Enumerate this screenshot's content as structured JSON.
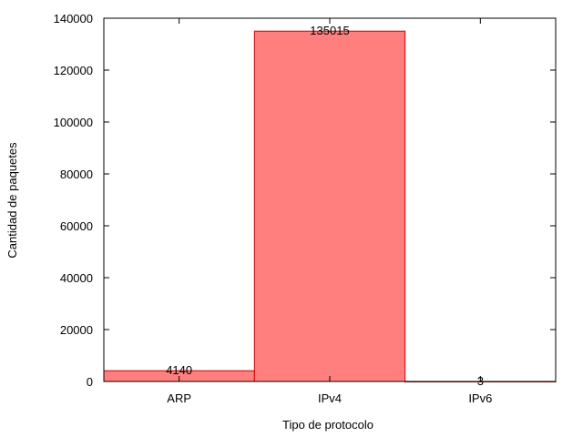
{
  "chart_data": {
    "type": "bar",
    "title": "",
    "categories": [
      "ARP",
      "IPv4",
      "IPv6"
    ],
    "values": [
      4140,
      135015,
      3
    ],
    "data_labels": [
      "4140",
      "135015",
      "3"
    ],
    "xlabel": "Tipo de protocolo",
    "ylabel": "Cantidad de paquetes",
    "ylim": [
      0,
      140000
    ],
    "yticks": [
      0,
      20000,
      40000,
      60000,
      80000,
      100000,
      120000,
      140000
    ],
    "ytick_labels": [
      "0",
      "20000",
      "40000",
      "60000",
      "80000",
      "100000",
      "120000",
      "140000"
    ],
    "grid": false,
    "legend": "none",
    "colors": {
      "bar_fill": "#ff7f7f",
      "bar_stroke": "#cc0000",
      "axis": "#000000"
    }
  }
}
